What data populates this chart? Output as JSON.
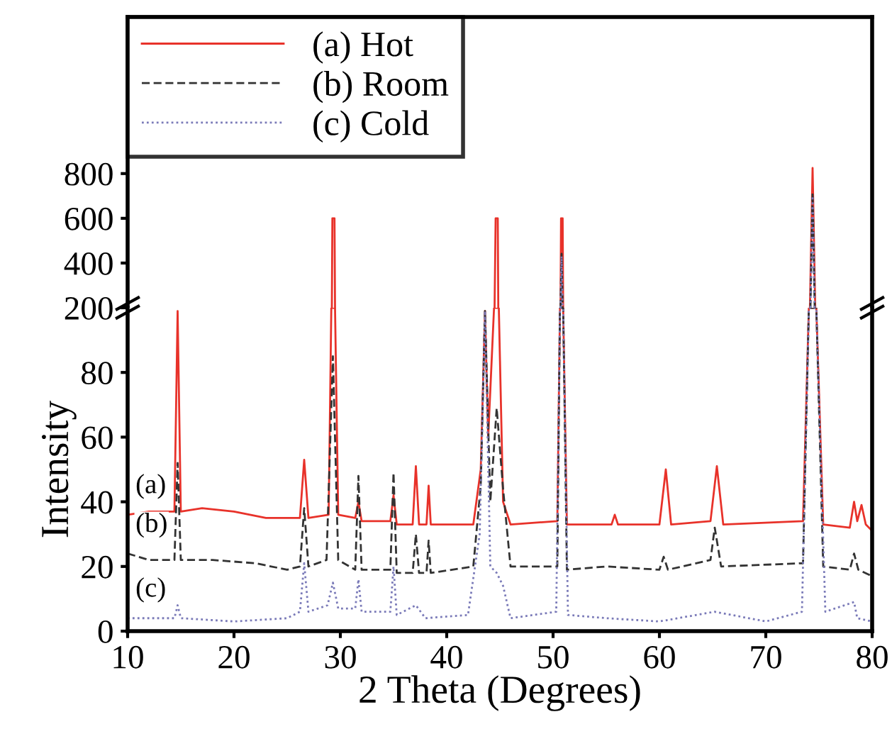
{
  "chart_data": [
    {
      "type": "line",
      "xlim": [
        10,
        80
      ],
      "ylim": [
        200,
        1500
      ],
      "yticks": [
        200,
        400,
        600,
        800
      ],
      "tick_labels": "y",
      "legend": "top left",
      "grid": false,
      "series": [
        {
          "name": "(a) Hot",
          "color": "#e8322a",
          "line_style": "solid",
          "x": [
            29.2,
            29.25,
            29.45,
            29.5,
            40,
            44.5,
            44.6,
            44.8,
            44.85,
            48,
            50.7,
            50.75,
            50.9,
            50.95,
            60,
            74.15,
            74.4,
            74.65
          ],
          "values": [
            200,
            600,
            600,
            200,
            null,
            200,
            600,
            600,
            200,
            null,
            200,
            600,
            600,
            200,
            null,
            200,
            825,
            200
          ]
        },
        {
          "name": "(b) Room",
          "color": "#333333",
          "line_style": "dashed",
          "x": [
            50.7,
            50.8,
            50.9,
            60,
            74.2,
            74.4,
            74.6
          ],
          "values": [
            200,
            441,
            200,
            null,
            200,
            715,
            200
          ]
        },
        {
          "name": "(c) Cold",
          "color": "#7a7ab8",
          "line_style": "dotted",
          "x": [
            50.7,
            50.8,
            50.9,
            60,
            74.2,
            74.4,
            74.6
          ],
          "values": [
            200,
            430,
            200,
            null,
            200,
            700,
            200
          ]
        }
      ]
    },
    {
      "type": "line",
      "xlabel": "2 Theta (Degrees)",
      "ylabel": "Intensity",
      "xlim": [
        10,
        80
      ],
      "ylim": [
        0,
        100
      ],
      "xticks": [
        10,
        20,
        30,
        40,
        50,
        60,
        70,
        80
      ],
      "yticks": [
        0,
        20,
        40,
        60,
        80
      ],
      "grid": false,
      "annotations": [
        "(a)",
        "(b)",
        "(c)"
      ],
      "series": [
        {
          "color": "#e8322a",
          "line_style": "solid",
          "x": [
            10,
            12,
            14.4,
            14.7,
            15.0,
            17,
            20,
            23,
            26.2,
            26.6,
            27.0,
            28.9,
            29.15,
            29.5,
            29.8,
            31.4,
            31.7,
            32.0,
            34.7,
            35.0,
            35.3,
            36.8,
            37.1,
            37.4,
            38.1,
            38.3,
            38.5,
            42.5,
            43.2,
            43.6,
            43.9,
            44.45,
            44.9,
            45.3,
            46,
            50.4,
            50.65,
            50.95,
            51.3,
            55.5,
            55.8,
            56.1,
            60.0,
            60.6,
            61.1,
            64.8,
            65.4,
            66.0,
            73.5,
            74.05,
            74.75,
            75.4,
            77.9,
            78.3,
            78.6,
            79.0,
            79.4,
            80
          ],
          "values": [
            36,
            37,
            37,
            99,
            37,
            38,
            37,
            35,
            35,
            53,
            35,
            36,
            100,
            100,
            36,
            35,
            40,
            34,
            34,
            42,
            33,
            33,
            51,
            33,
            33,
            45,
            33,
            33,
            50,
            99,
            60,
            100,
            100,
            40,
            33,
            34,
            100,
            100,
            33,
            33,
            36,
            33,
            33,
            50,
            33,
            34,
            51,
            33,
            34,
            100,
            100,
            33,
            32,
            40,
            34,
            39,
            33,
            31
          ]
        },
        {
          "color": "#333333",
          "line_style": "dashed",
          "x": [
            10,
            12,
            14.4,
            14.7,
            15.0,
            18,
            22,
            25,
            26.2,
            26.6,
            27.0,
            28.7,
            29.3,
            29.8,
            31.4,
            31.7,
            32.0,
            34.7,
            35.0,
            35.3,
            36.8,
            37.1,
            37.4,
            38.1,
            38.3,
            38.5,
            42.5,
            43.2,
            43.6,
            44.1,
            44.7,
            45.3,
            46,
            50.4,
            50.65,
            50.95,
            51.3,
            55,
            60.0,
            60.4,
            60.8,
            64.8,
            65.2,
            65.8,
            73.5,
            74.05,
            74.75,
            75.4,
            77.9,
            78.3,
            78.7,
            80
          ],
          "values": [
            24,
            22,
            22,
            52,
            22,
            22,
            21,
            19,
            20,
            38,
            20,
            22,
            85,
            22,
            19,
            48,
            19,
            19,
            49,
            18,
            18,
            30,
            18,
            18,
            28,
            18,
            20,
            45,
            99,
            40,
            69,
            44,
            20,
            20,
            100,
            100,
            19,
            20,
            19,
            23,
            19,
            22,
            32,
            20,
            21,
            100,
            100,
            20,
            19,
            24,
            19,
            17
          ]
        },
        {
          "color": "#7a7ab8",
          "line_style": "dotted",
          "x": [
            10,
            14.4,
            14.7,
            15.0,
            20,
            25,
            26.2,
            26.6,
            27.0,
            28.8,
            29.3,
            29.8,
            31.4,
            31.7,
            32.0,
            34.7,
            35.0,
            35.3,
            37.1,
            38,
            42,
            43.1,
            43.6,
            44.1,
            44.7,
            45.3,
            46,
            50.3,
            50.65,
            50.95,
            51.4,
            55,
            60,
            65.2,
            70,
            73.4,
            74.05,
            74.75,
            75.6,
            78.3,
            78.6,
            80
          ],
          "values": [
            4,
            4,
            8,
            4,
            3,
            4,
            6,
            21,
            6,
            8,
            15,
            7,
            7,
            16,
            6,
            6,
            20,
            5,
            8,
            4,
            5,
            30,
            99,
            20,
            18,
            14,
            4,
            6,
            100,
            100,
            5,
            4,
            3,
            6,
            3,
            6,
            100,
            100,
            6,
            9,
            4,
            3
          ]
        }
      ]
    }
  ]
}
